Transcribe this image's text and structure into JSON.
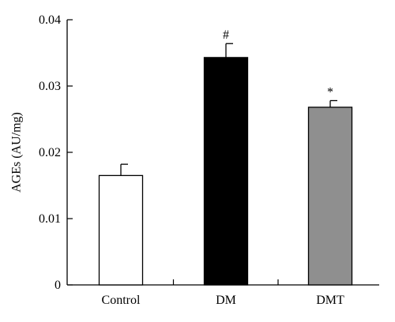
{
  "chart_data": {
    "type": "bar",
    "title": "",
    "xlabel": "",
    "ylabel": "AGEs (AU/mg)",
    "ylim": [
      0,
      0.04
    ],
    "yticks": [
      0,
      0.01,
      0.02,
      0.03,
      0.04
    ],
    "ytick_labels": [
      "0",
      "0.01",
      "0.02",
      "0.03",
      "0.04"
    ],
    "grid": false,
    "categories": [
      "Control",
      "DM",
      "DMT"
    ],
    "values": [
      0.0165,
      0.0343,
      0.0268
    ],
    "errors": [
      0.0017,
      0.0021,
      0.001
    ],
    "bar_colors": [
      "#ffffff",
      "#000000",
      "#8f8f8f"
    ],
    "annotations": [
      "",
      "#",
      "*"
    ]
  }
}
